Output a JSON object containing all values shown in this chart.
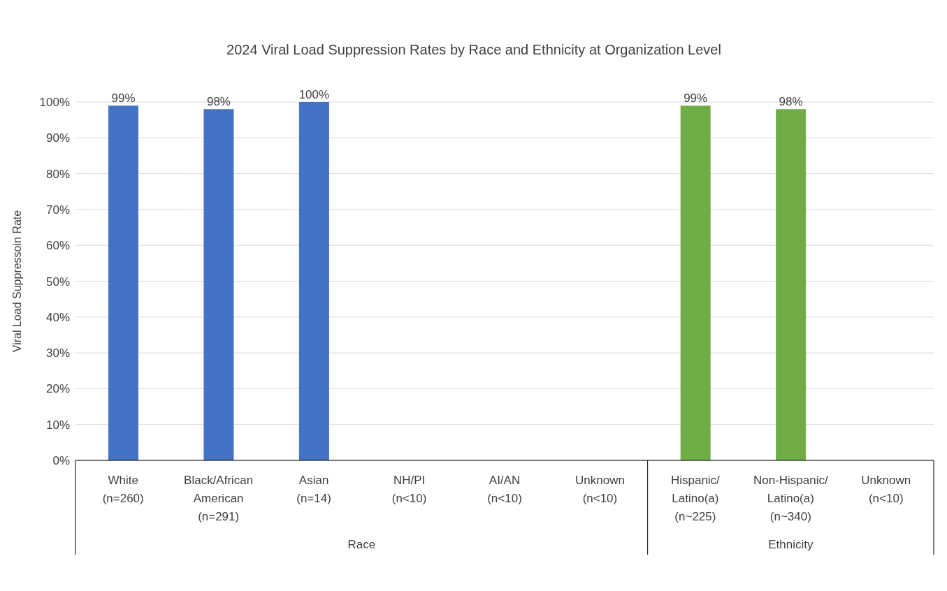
{
  "chart_data": {
    "type": "bar",
    "title": "2024 Viral Load Suppression Rates by Race and Ethnicity at Organization Level",
    "ylabel": "Viral Load Suppressoin Rate",
    "categories": [
      "White\n(n=260)",
      "Black/African\nAmerican\n(n=291)",
      "Asian\n(n=14)",
      "NH/PI\n(n<10)",
      "AI/AN\n(n<10)",
      "Unknown\n(n<10)",
      "Hispanic/\nLatino(a)\n(n~225)",
      "Non-Hispanic/\nLatino(a)\n(n~340)",
      "Unknown\n(n<10)"
    ],
    "values": [
      99,
      98,
      100,
      null,
      null,
      null,
      99,
      98,
      null
    ],
    "value_labels": [
      "99%",
      "98%",
      "100%",
      null,
      null,
      null,
      "99%",
      "98%",
      null
    ],
    "colors": [
      "#4472c4",
      "#4472c4",
      "#4472c4",
      "#4472c4",
      "#4472c4",
      "#4472c4",
      "#70ad47",
      "#70ad47",
      "#70ad47"
    ],
    "annotations": [
      "Race",
      "Ethnicity"
    ],
    "ylim": [
      0,
      100
    ],
    "yticks": [
      {
        "value": 0,
        "label": "0%"
      },
      {
        "value": 10,
        "label": "10%"
      },
      {
        "value": 20,
        "label": "20%"
      },
      {
        "value": 30,
        "label": "30%"
      },
      {
        "value": 40,
        "label": "40%"
      },
      {
        "value": 50,
        "label": "50%"
      },
      {
        "value": 60,
        "label": "60%"
      },
      {
        "value": 70,
        "label": "70%"
      },
      {
        "value": 80,
        "label": "80%"
      },
      {
        "value": 90,
        "label": "90%"
      },
      {
        "value": 100,
        "label": "100%"
      }
    ],
    "grid": "y"
  }
}
